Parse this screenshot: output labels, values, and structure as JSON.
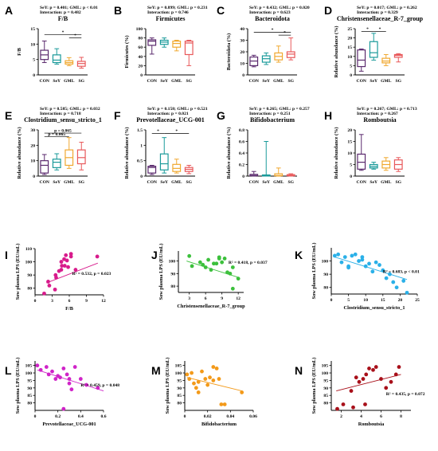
{
  "groups": [
    "CON",
    "SeY",
    "GML",
    "SG"
  ],
  "chart_data": [
    {
      "panel": "A",
      "type": "box",
      "title": "F/B",
      "ylabel": "F/B",
      "stats": [
        "SeY: p = 0.401; GML: p < 0.01",
        "Interaction: p = 0.482"
      ],
      "ylim": [
        0,
        15
      ],
      "yticks": [
        0,
        5,
        10,
        15
      ],
      "colors": [
        "#5b2a6e",
        "#1a9a9a",
        "#f0a830",
        "#e8585a"
      ],
      "boxes": [
        [
          4,
          5,
          6.5,
          8,
          11
        ],
        [
          3.5,
          4,
          4.8,
          6.5,
          8.5
        ],
        [
          3,
          3.5,
          4,
          4.6,
          5.6
        ],
        [
          2.2,
          2.8,
          3.7,
          4.4,
          5.7
        ]
      ],
      "sig": [
        {
          "from": 0,
          "to": 3,
          "label": "*",
          "level": 0.87
        },
        {
          "from": 2,
          "to": 3,
          "label": "*",
          "level": 0.8
        }
      ]
    },
    {
      "panel": "B",
      "type": "box",
      "title": "Firmicutes",
      "ylabel": "Firmicutes (%)",
      "stats": [
        "SeY: p = 0.899; GML: p = 0.231",
        "Interaction: p = 0.746"
      ],
      "ylim": [
        0,
        100
      ],
      "yticks": [
        0,
        20,
        40,
        60,
        80,
        100
      ],
      "colors": [
        "#5b2a6e",
        "#1a9a9a",
        "#f0a830",
        "#e8585a"
      ],
      "boxes": [
        [
          45,
          64,
          73,
          76,
          80
        ],
        [
          60,
          66,
          71,
          75,
          80
        ],
        [
          52,
          60,
          68,
          73,
          75
        ],
        [
          20,
          44,
          69,
          73,
          75
        ]
      ],
      "sig": []
    },
    {
      "panel": "C",
      "type": "box",
      "title": "Bacteroidota",
      "ylabel": "Bacteroidota (%)",
      "stats": [
        "SeY: p = 0.432; GML: p = 0.020",
        "Interaction: p = 0.623"
      ],
      "ylim": [
        0,
        40
      ],
      "yticks": [
        0,
        10,
        20,
        30,
        40
      ],
      "colors": [
        "#5b2a6e",
        "#1a9a9a",
        "#f0a830",
        "#e8585a"
      ],
      "boxes": [
        [
          7,
          8,
          12,
          15.5,
          17
        ],
        [
          9,
          11,
          14,
          16.5,
          19
        ],
        [
          11,
          13,
          16,
          19,
          25
        ],
        [
          13,
          15,
          18,
          20,
          32
        ]
      ],
      "sig": [
        {
          "from": 0,
          "to": 3,
          "label": "*",
          "level": 0.92
        },
        {
          "from": 2,
          "to": 3,
          "label": "*",
          "level": 0.86
        }
      ]
    },
    {
      "panel": "D",
      "type": "box",
      "title": "Christensenellaceae_R-7_group",
      "ylabel": "Relative abundance (%)",
      "stats": [
        "SeY: p = 0.017; GML: p = 0.262",
        "Interaction: p = 0.329"
      ],
      "ylim": [
        0,
        25
      ],
      "yticks": [
        0,
        5,
        10,
        15,
        20,
        25
      ],
      "colors": [
        "#5b2a6e",
        "#1a9a9a",
        "#f0a830",
        "#e8585a"
      ],
      "boxes": [
        [
          2,
          4.5,
          8,
          13.5,
          14
        ],
        [
          8,
          9.5,
          12,
          18,
          22.5
        ],
        [
          5,
          6.5,
          7.5,
          9,
          11
        ],
        [
          7,
          9.5,
          10.5,
          11,
          11.5
        ]
      ],
      "sig": [
        {
          "from": 0,
          "to": 1,
          "label": "*",
          "level": 0.94
        },
        {
          "from": 1,
          "to": 2,
          "label": "*",
          "level": 0.94
        }
      ]
    },
    {
      "panel": "E",
      "type": "box",
      "title": "Clostridium_sensu_stricto_1",
      "ylabel": "Relative abundance (%)",
      "stats": [
        "SeY: p = 0.585; GML: p = 0.032",
        "Interaction: p = 0.718"
      ],
      "ylim": [
        0,
        30
      ],
      "yticks": [
        0,
        10,
        20,
        30
      ],
      "colors": [
        "#5b2a6e",
        "#1a9a9a",
        "#f0a830",
        "#e8585a"
      ],
      "boxes": [
        [
          1,
          2,
          7,
          10,
          14
        ],
        [
          4,
          5.5,
          9,
          11,
          14.5
        ],
        [
          5,
          7,
          12,
          17,
          25
        ],
        [
          4,
          8,
          12,
          17,
          22
        ]
      ],
      "sig": [
        {
          "from": 0,
          "to": 3,
          "label": "p = 0.065",
          "level": 0.93
        },
        {
          "from": 0,
          "to": 2,
          "label": "p = 0.065",
          "level": 0.85
        }
      ]
    },
    {
      "panel": "F",
      "type": "box",
      "title": "Prevotellaceae_UCG-001",
      "ylabel": "Relative abundance (%)",
      "stats": [
        "SeY: p = 0.158; GML: p = 0.521",
        "Interaction: p = 0.021"
      ],
      "ylim": [
        0,
        1.5
      ],
      "yticks": [
        0,
        0.5,
        1.0,
        1.5
      ],
      "colors": [
        "#5b2a6e",
        "#1a9a9a",
        "#f0a830",
        "#e8585a"
      ],
      "boxes": [
        [
          0.05,
          0.1,
          0.28,
          0.32,
          0.35
        ],
        [
          0.1,
          0.2,
          0.4,
          0.72,
          1.25
        ],
        [
          0.1,
          0.15,
          0.25,
          0.38,
          0.55
        ],
        [
          0.08,
          0.15,
          0.22,
          0.28,
          0.35
        ]
      ],
      "sig": [
        {
          "from": 0,
          "to": 1,
          "label": "*",
          "level": 0.92
        },
        {
          "from": 1,
          "to": 3,
          "label": "*",
          "level": 0.92
        }
      ]
    },
    {
      "panel": "G",
      "type": "box",
      "title": "Bifidobacterium",
      "ylabel": "Relative abundance (%)",
      "stats": [
        "SeY: p = 0.265; GML: p = 0.257",
        "Interaction: p = 0.251"
      ],
      "ylim": [
        0,
        0.8
      ],
      "yticks": [
        0,
        0.2,
        0.4,
        0.6,
        0.8
      ],
      "colors": [
        "#5b2a6e",
        "#1a9a9a",
        "#f0a830",
        "#e8585a"
      ],
      "boxes": [
        [
          0,
          0.005,
          0.01,
          0.03,
          0.08
        ],
        [
          0,
          0.002,
          0.01,
          0.02,
          0.6
        ],
        [
          0,
          0.005,
          0.01,
          0.04,
          0.14
        ],
        [
          0,
          0.005,
          0.01,
          0.025,
          0.04
        ]
      ],
      "sig": []
    },
    {
      "panel": "H",
      "type": "box",
      "title": "Romboutsia",
      "ylabel": "Relative abundance (%)",
      "stats": [
        "SeY: p = 0.267; GML: p = 0.713",
        "Interaction: p = 0.267"
      ],
      "ylim": [
        0,
        20
      ],
      "yticks": [
        0,
        5,
        10,
        15,
        20
      ],
      "colors": [
        "#5b2a6e",
        "#1a9a9a",
        "#f0a830",
        "#e8585a"
      ],
      "boxes": [
        [
          2.5,
          3,
          6,
          9.5,
          18
        ],
        [
          3,
          3.5,
          4.2,
          5,
          6
        ],
        [
          2.5,
          3.5,
          5,
          6.5,
          8
        ],
        [
          2,
          3,
          5,
          7,
          8
        ]
      ],
      "sig": []
    },
    {
      "panel": "I",
      "type": "scatter",
      "xlabel": "F/B",
      "ylabel": "Sow plasma LPS (EU/mL)",
      "xlim": [
        0,
        12
      ],
      "xticks": [
        0,
        3,
        6,
        9,
        12
      ],
      "ylim": [
        75,
        110
      ],
      "yticks": [
        80,
        90,
        100,
        110
      ],
      "color": "#d81b8c",
      "annotation": "R² = 0.532, p = 0.023",
      "ann_pos": [
        6.5,
        90
      ],
      "fit": [
        [
          2,
          84
        ],
        [
          11,
          99
        ]
      ],
      "x": [
        1.6,
        2.3,
        2.5,
        3.5,
        3.7,
        3.6,
        4.2,
        4.6,
        4.7,
        4.6,
        5.1,
        5.4,
        5.2,
        5.8,
        6.3,
        5.6,
        6.3,
        7.1,
        10.9
      ],
      "y": [
        76,
        85,
        82,
        79,
        88,
        90,
        93,
        94,
        97,
        100,
        102,
        105,
        97,
        96,
        104,
        101,
        106,
        94,
        104
      ]
    },
    {
      "panel": "J",
      "type": "scatter",
      "xlabel": "Christensenellaceae_R-7_group",
      "ylabel": "Sow plasma LPS (EU/mL)",
      "xlim": [
        1,
        13
      ],
      "xticks": [
        3,
        6,
        9,
        12
      ],
      "ylim": [
        75,
        108
      ],
      "yticks": [
        80,
        90,
        100
      ],
      "color": "#3cc03c",
      "annotation": "R² = 0.418, p = 0.037",
      "ann_pos": [
        10.2,
        98
      ],
      "fit": [
        [
          2.5,
          100
        ],
        [
          12,
          87
        ]
      ],
      "x": [
        3,
        3.5,
        5,
        5.5,
        6,
        6.5,
        7,
        7.5,
        8,
        8.5,
        9,
        9.5,
        10,
        11,
        12,
        8.5,
        10.5,
        11
      ],
      "y": [
        104,
        96,
        99,
        97,
        95,
        101,
        93,
        98,
        98,
        103,
        99,
        102,
        91,
        95,
        86,
        102,
        90,
        78
      ]
    },
    {
      "panel": "K",
      "type": "scatter",
      "xlabel": "Clostridium_sensu_stricto_1",
      "ylabel": "Sow plasma LPS (EU/mL)",
      "xlim": [
        0,
        25
      ],
      "xticks": [
        0,
        5,
        10,
        15,
        20,
        25
      ],
      "ylim": [
        75,
        110
      ],
      "yticks": [
        80,
        90,
        100
      ],
      "color": "#2ab0e8",
      "annotation": "R² = 0.683, p < 0.01",
      "ann_pos": [
        15,
        91
      ],
      "fit": [
        [
          1,
          103
        ],
        [
          22,
          86
        ]
      ],
      "x": [
        1,
        2,
        3,
        4,
        5,
        6,
        7,
        8,
        9,
        10,
        11,
        12,
        13,
        14,
        15,
        16,
        17,
        18,
        19,
        21,
        22,
        5,
        9
      ],
      "y": [
        104,
        105,
        99,
        103,
        96,
        104,
        105,
        100,
        101,
        96,
        98,
        92,
        99,
        97,
        93,
        87,
        90,
        84,
        80,
        85,
        76,
        95,
        103
      ]
    },
    {
      "panel": "L",
      "type": "scatter",
      "xlabel": "Prevotellaceae_UCG-001",
      "ylabel": "Sow plasma LPS (EU/mL)",
      "xlim": [
        0,
        0.6
      ],
      "xticks": [
        0.0,
        0.2,
        0.4,
        0.6
      ],
      "ylim": [
        75,
        108
      ],
      "yticks": [
        80,
        85,
        90,
        95,
        100,
        105
      ],
      "color": "#d024c8",
      "annotation": "R² = 0.459, p = 0.048",
      "ann_pos": [
        0.4,
        91
      ],
      "fit": [
        [
          0.02,
          102
        ],
        [
          0.6,
          88
        ]
      ],
      "x": [
        0.02,
        0.05,
        0.1,
        0.12,
        0.15,
        0.18,
        0.2,
        0.22,
        0.25,
        0.28,
        0.3,
        0.32,
        0.35,
        0.4,
        0.45,
        0.55,
        0.25,
        0.3
      ],
      "y": [
        105,
        102,
        104,
        99,
        101,
        96,
        98,
        97,
        103,
        99,
        96,
        89,
        104,
        96,
        92,
        90,
        76,
        93
      ]
    },
    {
      "panel": "M",
      "type": "scatter",
      "xlabel": "Bifidobacterium",
      "ylabel": "Sow plasma LPS (EU/mL)",
      "xlim": [
        0,
        0.06
      ],
      "xticks": [
        0.0,
        0.02,
        0.04,
        0.06
      ],
      "ylim": [
        75,
        108
      ],
      "yticks": [
        80,
        85,
        90,
        95,
        100,
        105
      ],
      "color": "#f39a1a",
      "annotation": "",
      "ann_pos": [
        0.04,
        90
      ],
      "fit": [
        [
          0.002,
          97
        ],
        [
          0.05,
          88
        ]
      ],
      "x": [
        0.002,
        0.004,
        0.006,
        0.008,
        0.01,
        0.012,
        0.015,
        0.018,
        0.02,
        0.022,
        0.025,
        0.028,
        0.03,
        0.032,
        0.035,
        0.05,
        0.012,
        0.025
      ],
      "y": [
        99,
        96,
        100,
        93,
        90,
        94,
        101,
        96,
        92,
        97,
        104,
        103,
        96,
        79,
        79,
        87,
        87,
        95
      ]
    },
    {
      "panel": "N",
      "type": "scatter",
      "xlabel": "Romboutsia",
      "ylabel": "Sow plasma LPS (EU/mL)",
      "xlim": [
        1,
        9
      ],
      "xticks": [
        2,
        4,
        6,
        8
      ],
      "ylim": [
        75,
        108
      ],
      "yticks": [
        80,
        85,
        90,
        95,
        100,
        105
      ],
      "color": "#a8101a",
      "annotation": "R² = 0.435, p = 0.072",
      "ann_pos": [
        6.5,
        85
      ],
      "fit": [
        [
          1.5,
          88
        ],
        [
          8,
          99
        ]
      ],
      "x": [
        1.6,
        2.2,
        3,
        3.5,
        3.8,
        4.2,
        4.5,
        4.8,
        5.2,
        5.5,
        6,
        6.5,
        7,
        7.5,
        7.8,
        3.2,
        4.4
      ],
      "y": [
        76,
        79,
        88,
        97,
        94,
        96,
        99,
        103,
        102,
        104,
        96,
        90,
        94,
        99,
        104,
        77,
        79
      ]
    }
  ]
}
